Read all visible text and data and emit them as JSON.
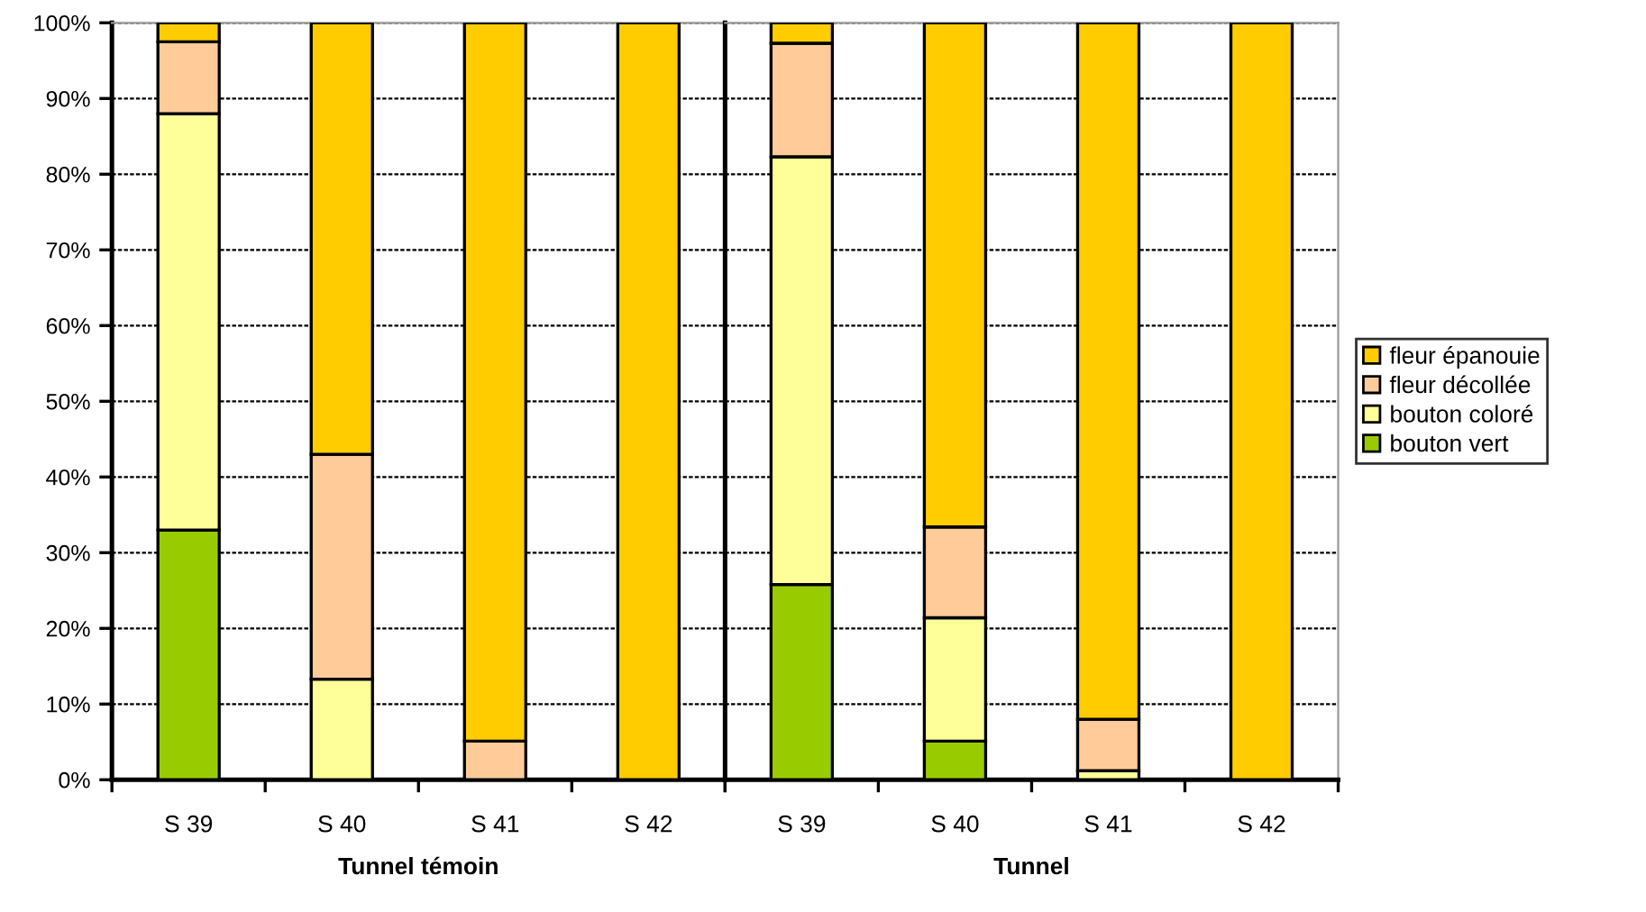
{
  "chart_data": [
    {
      "type": "bar",
      "stacked": true,
      "xlabel": "Tunnel témoin",
      "categories": [
        "S 39",
        "S 40",
        "S 41",
        "S 42"
      ],
      "series": [
        {
          "color": "#99cc00",
          "values": [
            33,
            0,
            0,
            0
          ]
        },
        {
          "color": "#ffff99",
          "values": [
            55,
            13.3,
            0,
            0
          ]
        },
        {
          "color": "#ffcc99",
          "values": [
            9.5,
            29.7,
            5.1,
            0
          ]
        },
        {
          "color": "#ffcc00",
          "values": [
            2.5,
            57,
            94.9,
            100
          ]
        }
      ],
      "ylim": [
        0,
        100
      ],
      "yticks": [
        {
          "value": 0,
          "label": "0%"
        },
        {
          "value": 10,
          "label": "10%"
        },
        {
          "value": 20,
          "label": "20%"
        },
        {
          "value": 30,
          "label": "30%"
        },
        {
          "value": 40,
          "label": "40%"
        },
        {
          "value": 50,
          "label": "50%"
        },
        {
          "value": 60,
          "label": "60%"
        },
        {
          "value": 70,
          "label": "70%"
        },
        {
          "value": 80,
          "label": "80%"
        },
        {
          "value": 90,
          "label": "90%"
        },
        {
          "value": 100,
          "label": "100%"
        }
      ],
      "grid": "y"
    },
    {
      "type": "bar",
      "stacked": true,
      "xlabel": "Tunnel",
      "categories": [
        "S 39",
        "S 40",
        "S 41",
        "S 42"
      ],
      "series": [
        {
          "name": "bouton vert",
          "color": "#99cc00",
          "values": [
            25.8,
            5.1,
            0,
            0
          ]
        },
        {
          "name": "bouton coloré",
          "color": "#ffff99",
          "values": [
            56.5,
            16.3,
            1.2,
            0
          ]
        },
        {
          "name": "fleur décollée",
          "color": "#ffcc99",
          "values": [
            15,
            12,
            6.8,
            0
          ]
        },
        {
          "name": "fleur épanouie",
          "color": "#ffcc00",
          "values": [
            2.7,
            66.6,
            92,
            100
          ]
        }
      ],
      "ylim": [
        0,
        100
      ],
      "yticks": [
        {
          "value": 0,
          "label": null
        },
        {
          "value": 10,
          "label": null
        },
        {
          "value": 20,
          "label": null
        },
        {
          "value": 30,
          "label": null
        },
        {
          "value": 40,
          "label": null
        },
        {
          "value": 50,
          "label": null
        },
        {
          "value": 60,
          "label": null
        },
        {
          "value": 70,
          "label": null
        },
        {
          "value": 80,
          "label": null
        },
        {
          "value": 90,
          "label": null
        },
        {
          "value": 100,
          "label": null
        }
      ],
      "grid": "y",
      "legend": "right",
      "tick_labels": "x"
    }
  ]
}
